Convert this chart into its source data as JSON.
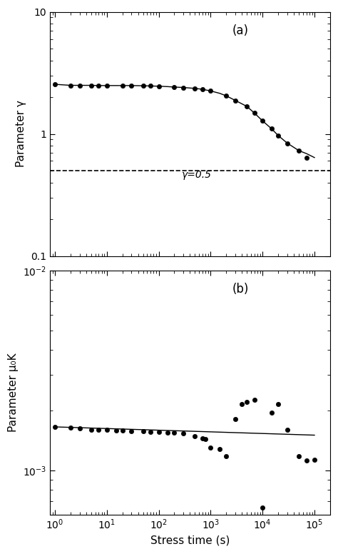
{
  "panel_a_label": "(a)",
  "panel_b_label": "(b)",
  "xlabel": "Stress time (s)",
  "ylabel_a": "Parameter γ",
  "ylabel_b": "Parameter μ₀K",
  "dashed_y": 0.5,
  "dashed_label": "γ=0.5",
  "gamma_line_x": [
    1.0,
    1.5,
    2.0,
    3.0,
    5.0,
    7.0,
    10.0,
    15.0,
    20.0,
    30.0,
    50.0,
    70.0,
    100.0,
    150.0,
    200.0,
    300.0,
    500.0,
    700.0,
    1000.0,
    1500.0,
    2000.0,
    3000.0,
    5000.0,
    7000.0,
    10000.0,
    15000.0,
    20000.0,
    30000.0,
    50000.0,
    70000.0,
    100000.0
  ],
  "gamma_line_y": [
    2.55,
    2.52,
    2.5,
    2.5,
    2.5,
    2.49,
    2.49,
    2.49,
    2.49,
    2.49,
    2.48,
    2.47,
    2.46,
    2.44,
    2.42,
    2.4,
    2.36,
    2.32,
    2.25,
    2.15,
    2.05,
    1.88,
    1.68,
    1.48,
    1.28,
    1.1,
    0.97,
    0.84,
    0.73,
    0.69,
    0.64
  ],
  "gamma_dots_x": [
    1.0,
    2.0,
    3.0,
    5.0,
    7.0,
    10.0,
    20.0,
    30.0,
    50.0,
    70.0,
    100.0,
    200.0,
    300.0,
    500.0,
    700.0,
    1000.0,
    2000.0,
    3000.0,
    5000.0,
    7000.0,
    10000.0,
    15000.0,
    20000.0,
    30000.0,
    50000.0,
    70000.0
  ],
  "gamma_dots_y": [
    2.55,
    2.5,
    2.5,
    2.5,
    2.49,
    2.49,
    2.49,
    2.49,
    2.48,
    2.47,
    2.46,
    2.42,
    2.4,
    2.36,
    2.32,
    2.25,
    2.05,
    1.88,
    1.68,
    1.48,
    1.28,
    1.1,
    0.97,
    0.84,
    0.73,
    0.64
  ],
  "mu_line_x": [
    1.0,
    100000.0
  ],
  "mu_line_y": [
    0.00165,
    0.0015
  ],
  "mu_dots_x": [
    1.0,
    2.0,
    3.0,
    5.0,
    7.0,
    10.0,
    15.0,
    20.0,
    30.0,
    50.0,
    70.0,
    100.0,
    150.0,
    200.0,
    300.0,
    500.0,
    700.0,
    800.0,
    1000.0,
    1500.0,
    2000.0,
    3000.0,
    4000.0,
    5000.0,
    7000.0,
    10000.0,
    15000.0,
    20000.0,
    30000.0,
    50000.0,
    70000.0,
    100000.0
  ],
  "mu_dots_y": [
    0.00165,
    0.00163,
    0.00162,
    0.0016,
    0.0016,
    0.00159,
    0.00158,
    0.00158,
    0.00157,
    0.00157,
    0.00156,
    0.00156,
    0.00155,
    0.00154,
    0.00153,
    0.00148,
    0.00145,
    0.00143,
    0.0013,
    0.00128,
    0.00118,
    0.0018,
    0.00215,
    0.0022,
    0.00225,
    0.00065,
    0.00195,
    0.00215,
    0.0016,
    0.00118,
    0.00112,
    0.00113
  ],
  "xlim": [
    0.8,
    200000
  ],
  "ylim_a": [
    0.1,
    10
  ],
  "ylim_b": [
    0.0006,
    0.01
  ],
  "background_color": "#ffffff",
  "line_color": "#000000",
  "dot_color": "#000000",
  "figsize": [
    4.74,
    7.76
  ],
  "dpi": 100
}
